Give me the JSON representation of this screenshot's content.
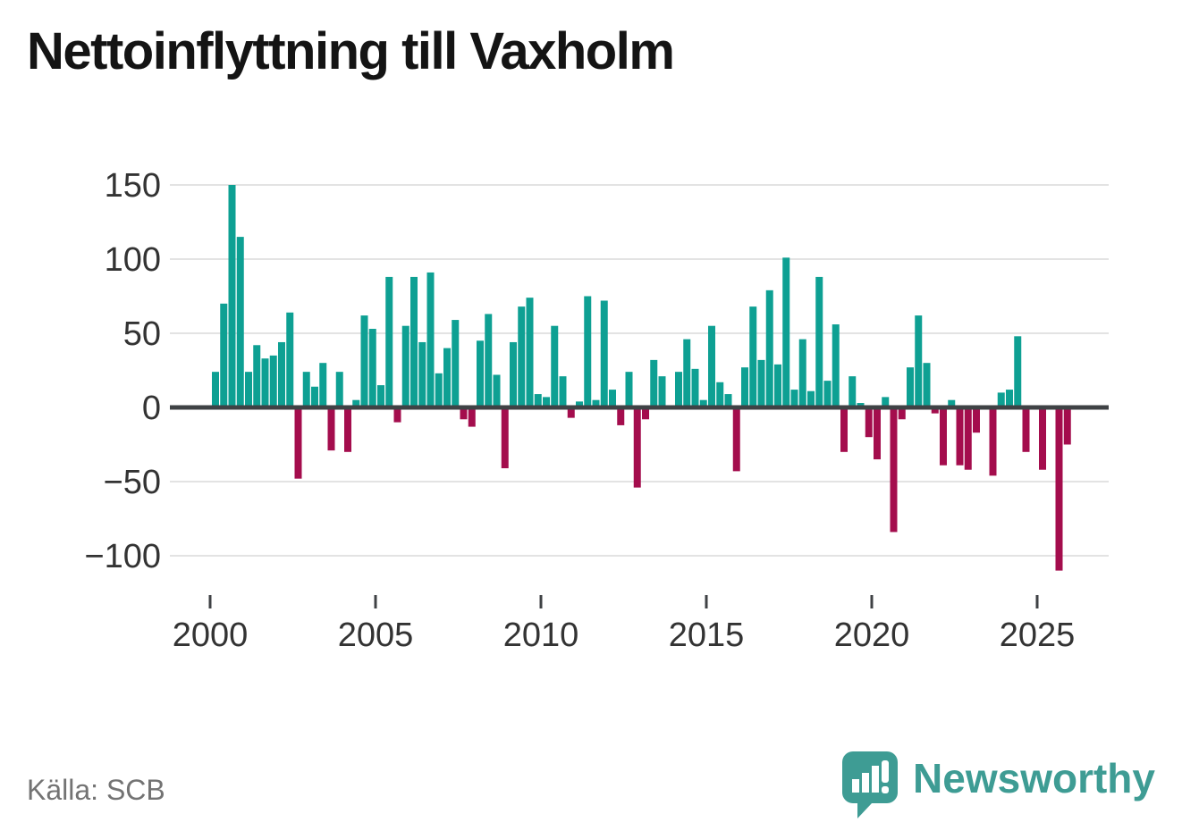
{
  "title": "Nettoinflyttning till Vaxholm",
  "source_label": "Källa: SCB",
  "branding": {
    "name": "Newsworthy",
    "color": "#3E9C94"
  },
  "colors": {
    "positive": "#0EA093",
    "negative": "#A40D4D",
    "axis": "#3F4245",
    "grid": "#E3E3E3",
    "tick_text": "#333333",
    "muted_text": "#737373"
  },
  "chart_data": {
    "type": "bar",
    "title": "Nettoinflyttning till Vaxholm",
    "xlabel": "",
    "ylabel": "",
    "x_type": "quarterly",
    "start": "2000-Q1",
    "end": "2025-Q4",
    "yticks": [
      150,
      100,
      50,
      0,
      -50,
      -100
    ],
    "xticks": [
      2000,
      2005,
      2010,
      2015,
      2020,
      2025
    ],
    "ylim": [
      -123,
      160
    ],
    "grid": true,
    "legend": false,
    "series_by_year": [
      {
        "year": 2000,
        "values": [
          24,
          70,
          150,
          115
        ]
      },
      {
        "year": 2001,
        "values": [
          24,
          42,
          33,
          35
        ]
      },
      {
        "year": 2002,
        "values": [
          44,
          64,
          -48,
          24
        ]
      },
      {
        "year": 2003,
        "values": [
          14,
          30,
          -29,
          24
        ]
      },
      {
        "year": 2004,
        "values": [
          -30,
          5,
          62,
          53
        ]
      },
      {
        "year": 2005,
        "values": [
          15,
          88,
          -10,
          55
        ]
      },
      {
        "year": 2006,
        "values": [
          88,
          44,
          91,
          23
        ]
      },
      {
        "year": 2007,
        "values": [
          40,
          59,
          -8,
          -13
        ]
      },
      {
        "year": 2008,
        "values": [
          45,
          63,
          22,
          -41
        ]
      },
      {
        "year": 2009,
        "values": [
          44,
          68,
          74,
          9
        ]
      },
      {
        "year": 2010,
        "values": [
          7,
          55,
          21,
          -7
        ]
      },
      {
        "year": 2011,
        "values": [
          4,
          75,
          5,
          72
        ]
      },
      {
        "year": 2012,
        "values": [
          12,
          -12,
          24,
          -54
        ]
      },
      {
        "year": 2013,
        "values": [
          -8,
          32,
          21,
          0
        ]
      },
      {
        "year": 2014,
        "values": [
          24,
          46,
          26,
          5
        ]
      },
      {
        "year": 2015,
        "values": [
          55,
          17,
          9,
          -43
        ]
      },
      {
        "year": 2016,
        "values": [
          27,
          68,
          32,
          79
        ]
      },
      {
        "year": 2017,
        "values": [
          29,
          101,
          12,
          46
        ]
      },
      {
        "year": 2018,
        "values": [
          11,
          88,
          18,
          56
        ]
      },
      {
        "year": 2019,
        "values": [
          -30,
          21,
          3,
          -20
        ]
      },
      {
        "year": 2020,
        "values": [
          -35,
          7,
          -84,
          -8
        ]
      },
      {
        "year": 2021,
        "values": [
          27,
          62,
          30,
          -4
        ]
      },
      {
        "year": 2022,
        "values": [
          -39,
          5,
          -39,
          -42
        ]
      },
      {
        "year": 2023,
        "values": [
          -17,
          0,
          -46,
          10
        ]
      },
      {
        "year": 2024,
        "values": [
          12,
          48,
          -30,
          0
        ]
      },
      {
        "year": 2025,
        "values": [
          -42,
          0,
          -110,
          -25
        ]
      }
    ]
  }
}
